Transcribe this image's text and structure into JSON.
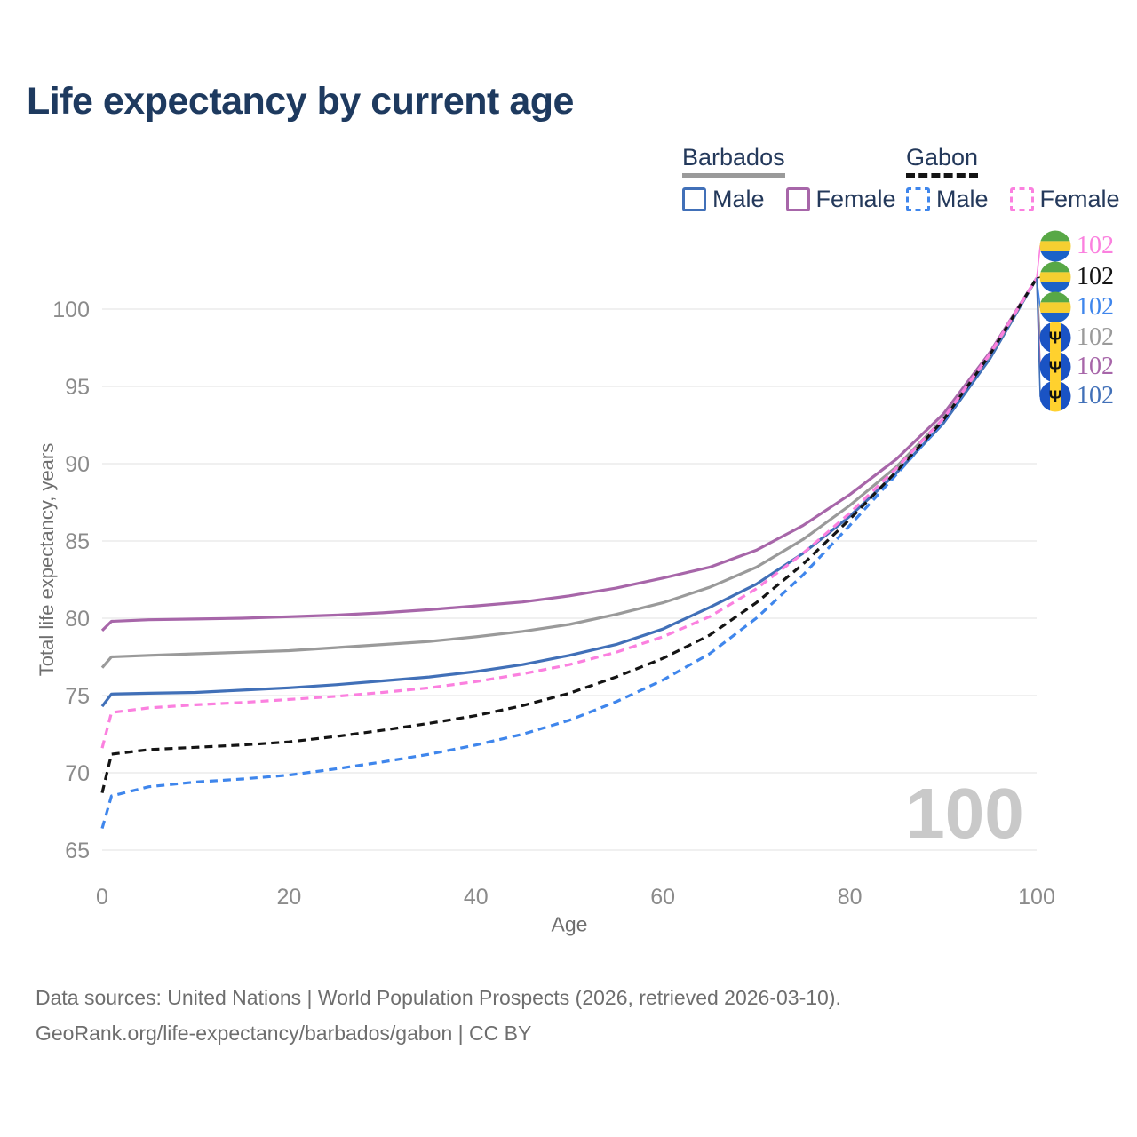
{
  "page": {
    "title": "Life expectancy by current age"
  },
  "legend": {
    "groups": [
      {
        "label": "Barbados",
        "line_style": "solid",
        "line_color": "#9a9a9a",
        "items": [
          {
            "label": "Male",
            "color": "#4170b8",
            "dashed": false
          },
          {
            "label": "Female",
            "color": "#a766a9",
            "dashed": false
          }
        ]
      },
      {
        "label": "Gabon",
        "line_style": "dashed",
        "line_color": "#141414",
        "items": [
          {
            "label": "Male",
            "color": "#3f86ec",
            "dashed": true
          },
          {
            "label": "Female",
            "color": "#fb80df",
            "dashed": true
          }
        ]
      }
    ]
  },
  "chart_data": {
    "type": "line",
    "title": "Life expectancy by current age",
    "xlabel": "Age",
    "ylabel": "Total life expectancy, years",
    "xlim": [
      0,
      100
    ],
    "ylim": [
      65,
      103.5
    ],
    "xticks": [
      0,
      20,
      40,
      60,
      80,
      100
    ],
    "yticks": [
      65,
      70,
      75,
      80,
      85,
      90,
      95,
      100
    ],
    "grid": true,
    "legend_position": "top-right",
    "watermark": "100",
    "x": [
      0,
      1,
      5,
      10,
      15,
      20,
      25,
      30,
      35,
      40,
      45,
      50,
      55,
      60,
      65,
      70,
      75,
      80,
      85,
      90,
      95,
      100
    ],
    "series": [
      {
        "name": "Gabon Female",
        "country": "Gabon",
        "sex": "Female",
        "flag": "gabon",
        "color": "#fb80df",
        "dashed": true,
        "end_label": "102",
        "values": [
          71.6,
          73.9,
          74.2,
          74.4,
          74.55,
          74.75,
          74.95,
          75.2,
          75.5,
          75.9,
          76.4,
          77.0,
          77.8,
          78.8,
          80.1,
          81.9,
          84.2,
          86.8,
          89.7,
          92.9,
          97.1,
          102
        ]
      },
      {
        "name": "Gabon Both sexes",
        "country": "Gabon",
        "sex": "Both",
        "flag": "gabon",
        "color": "#141414",
        "dashed": true,
        "end_label": "102",
        "values": [
          68.7,
          71.2,
          71.5,
          71.65,
          71.8,
          72.0,
          72.35,
          72.75,
          73.2,
          73.7,
          74.35,
          75.15,
          76.2,
          77.4,
          78.9,
          81.0,
          83.5,
          86.4,
          89.5,
          92.8,
          97.05,
          102
        ]
      },
      {
        "name": "Gabon Male",
        "country": "Gabon",
        "sex": "Male",
        "flag": "gabon",
        "color": "#3f86ec",
        "dashed": true,
        "end_label": "102",
        "values": [
          66.4,
          68.5,
          69.1,
          69.4,
          69.6,
          69.85,
          70.25,
          70.7,
          71.2,
          71.8,
          72.5,
          73.4,
          74.6,
          76.0,
          77.7,
          80.0,
          82.8,
          86.0,
          89.3,
          92.7,
          97.0,
          102
        ]
      },
      {
        "name": "Barbados Both sexes",
        "country": "Barbados",
        "sex": "Both",
        "flag": "barbados",
        "color": "#9a9a9a",
        "dashed": false,
        "end_label": "102",
        "values": [
          76.8,
          77.5,
          77.6,
          77.7,
          77.8,
          77.9,
          78.1,
          78.3,
          78.5,
          78.8,
          79.15,
          79.6,
          80.25,
          81.0,
          82.0,
          83.3,
          85.1,
          87.3,
          89.8,
          92.9,
          97.0,
          102
        ]
      },
      {
        "name": "Barbados Female",
        "country": "Barbados",
        "sex": "Female",
        "flag": "barbados",
        "color": "#a766a9",
        "dashed": false,
        "end_label": "102",
        "values": [
          79.2,
          79.8,
          79.9,
          79.95,
          80.0,
          80.1,
          80.2,
          80.35,
          80.55,
          80.8,
          81.05,
          81.45,
          81.95,
          82.6,
          83.3,
          84.4,
          86.0,
          88.0,
          90.3,
          93.2,
          97.2,
          102
        ]
      },
      {
        "name": "Barbados Male",
        "country": "Barbados",
        "sex": "Male",
        "flag": "barbados",
        "color": "#4170b8",
        "dashed": false,
        "end_label": "102",
        "values": [
          74.3,
          75.1,
          75.15,
          75.2,
          75.35,
          75.5,
          75.7,
          75.95,
          76.2,
          76.55,
          77.0,
          77.6,
          78.3,
          79.3,
          80.7,
          82.2,
          84.2,
          86.6,
          89.4,
          92.6,
          96.8,
          102
        ]
      }
    ]
  },
  "footer": {
    "line1": "Data sources: United Nations | World Population Prospects (2026, retrieved 2026-03-10).",
    "line2": "GeoRank.org/life-expectancy/barbados/gabon | CC BY"
  }
}
